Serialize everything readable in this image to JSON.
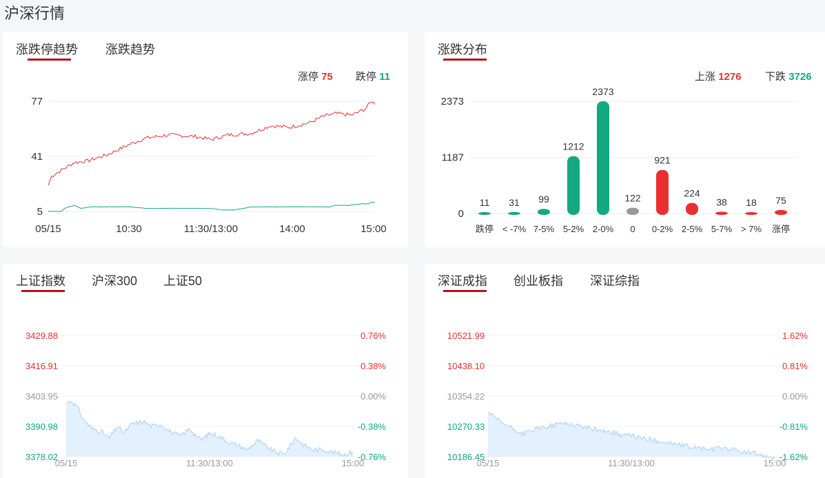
{
  "page_title": "沪深行情",
  "colors": {
    "up": "#e93030",
    "down": "#12a980",
    "flat": "#999999",
    "accent": "#b8101a",
    "area": "#a8cff5"
  },
  "limit_panel": {
    "tabs": [
      "涨跌停趋势",
      "涨跌趋势"
    ],
    "active_tab": 0,
    "stats": {
      "up_label": "涨停",
      "up_value": "75",
      "down_label": "跌停",
      "down_value": "11"
    }
  },
  "dist_panel": {
    "tabs": [
      "涨跌分布"
    ],
    "active_tab": 0,
    "stats": {
      "up_label": "上涨",
      "up_value": "1276",
      "down_label": "下跌",
      "down_value": "3726"
    }
  },
  "sh_panel": {
    "tabs": [
      "上证指数",
      "沪深300",
      "上证50"
    ],
    "active_tab": 0
  },
  "sz_panel": {
    "tabs": [
      "深证成指",
      "创业板指",
      "深证综指"
    ],
    "active_tab": 0
  },
  "chart_data": [
    {
      "type": "line",
      "yticks": [
        "77",
        "41",
        "5"
      ],
      "ylim": [
        5,
        77
      ],
      "xticks": [
        "05/15",
        "10:30",
        "11:30/13:00",
        "14:00",
        "15:00"
      ],
      "series": [
        {
          "color": "#e93030",
          "x": [
            0,
            0.01,
            0.04,
            0.08,
            0.12,
            0.18,
            0.25,
            0.3,
            0.37,
            0.45,
            0.5,
            0.55,
            0.62,
            0.68,
            0.74,
            0.8,
            0.84,
            0.88,
            0.93,
            0.97,
            0.99,
            1.0
          ],
          "values": [
            22,
            28,
            32,
            37,
            38,
            42,
            49,
            53,
            55,
            54,
            52,
            55,
            56,
            61,
            60,
            63,
            67,
            69,
            68,
            72,
            77,
            75
          ]
        },
        {
          "color": "#12a980",
          "x": [
            0,
            0.04,
            0.05,
            0.08,
            0.1,
            0.13,
            0.15,
            0.2,
            0.25,
            0.3,
            0.4,
            0.5,
            0.53,
            0.55,
            0.57,
            0.6,
            0.62,
            0.7,
            0.75,
            0.8,
            0.83,
            0.86,
            0.88,
            0.92,
            0.96,
            0.98,
            0.99,
            1.0
          ],
          "values": [
            5,
            5,
            7,
            9,
            7,
            8,
            8,
            8,
            8,
            7,
            7,
            7,
            6,
            6,
            6,
            7,
            8,
            8,
            8,
            8,
            8,
            8,
            9,
            9,
            10,
            10,
            11,
            11
          ]
        }
      ]
    },
    {
      "type": "bar",
      "categories": [
        "跌停",
        "< -7%",
        "7-5%",
        "5-2%",
        "2-0%",
        "0",
        "0-2%",
        "2-5%",
        "5-7%",
        "> 7%",
        "涨停"
      ],
      "values": [
        11,
        31,
        99,
        1212,
        2373,
        122,
        921,
        224,
        38,
        18,
        75
      ],
      "colors": [
        "#12a980",
        "#12a980",
        "#12a980",
        "#12a980",
        "#12a980",
        "#999999",
        "#e93030",
        "#e93030",
        "#e93030",
        "#e93030",
        "#e93030"
      ],
      "yticks": [
        "2373",
        "1187",
        "0"
      ],
      "ylim": [
        0,
        2373
      ]
    },
    {
      "type": "area",
      "left_ticks": [
        "3429.88",
        "3416.91",
        "3403.95",
        "3390.98",
        "3378.02"
      ],
      "right_ticks": [
        "0.76%",
        "0.38%",
        "0.00%",
        "-0.38%",
        "-0.76%"
      ],
      "ylim": [
        3378.02,
        3429.88
      ],
      "xticks": [
        "05/15",
        "11:30/13:00",
        "15:00"
      ],
      "x": [
        0,
        0.02,
        0.04,
        0.06,
        0.09,
        0.12,
        0.15,
        0.18,
        0.2,
        0.23,
        0.27,
        0.3,
        0.33,
        0.37,
        0.4,
        0.43,
        0.47,
        0.5,
        0.53,
        0.57,
        0.6,
        0.63,
        0.67,
        0.7,
        0.73,
        0.76,
        0.8,
        0.83,
        0.86,
        0.9,
        0.93,
        0.97,
        1.0
      ],
      "values": [
        3401,
        3402,
        3399,
        3394,
        3390,
        3389,
        3386,
        3391,
        3388,
        3392,
        3393,
        3391,
        3392,
        3388,
        3387,
        3390,
        3385,
        3388,
        3387,
        3384,
        3383,
        3381,
        3385,
        3382,
        3380,
        3379,
        3386,
        3383,
        3381,
        3381,
        3380,
        3379,
        3380
      ]
    },
    {
      "type": "area",
      "left_ticks": [
        "10521.99",
        "10438.10",
        "10354.22",
        "10270.33",
        "10186.45"
      ],
      "right_ticks": [
        "1.62%",
        "0.81%",
        "0.00%",
        "-0.81%",
        "-1.62%"
      ],
      "ylim": [
        10186.45,
        10521.99
      ],
      "xticks": [
        "05/15",
        "11:30/13:00",
        "15:00"
      ],
      "x": [
        0,
        0.03,
        0.06,
        0.09,
        0.12,
        0.15,
        0.18,
        0.22,
        0.26,
        0.3,
        0.34,
        0.38,
        0.42,
        0.46,
        0.5,
        0.54,
        0.58,
        0.62,
        0.66,
        0.7,
        0.74,
        0.78,
        0.82,
        0.86,
        0.9,
        0.94,
        0.97,
        1.0
      ],
      "values": [
        10310,
        10290,
        10275,
        10262,
        10250,
        10258,
        10265,
        10272,
        10280,
        10275,
        10268,
        10262,
        10255,
        10248,
        10244,
        10238,
        10232,
        10226,
        10220,
        10214,
        10210,
        10206,
        10212,
        10205,
        10198,
        10194,
        10188,
        10186
      ]
    }
  ]
}
